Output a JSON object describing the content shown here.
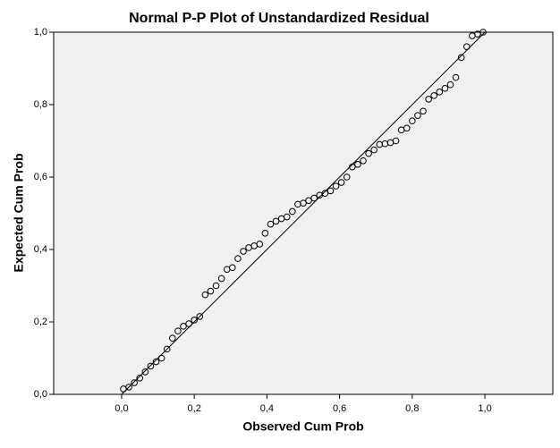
{
  "chart_data": {
    "type": "scatter",
    "title": "Normal P-P Plot of Unstandardized Residual",
    "x_label": "Observed Cum Prob",
    "y_label": "Expected Cum Prob",
    "color": "#000000",
    "x": [
      0.005,
      0.02,
      0.035,
      0.05,
      0.065,
      0.08,
      0.095,
      0.11,
      0.125,
      0.14,
      0.155,
      0.17,
      0.185,
      0.2,
      0.215,
      0.23,
      0.245,
      0.26,
      0.275,
      0.29,
      0.305,
      0.32,
      0.335,
      0.35,
      0.365,
      0.38,
      0.395,
      0.41,
      0.425,
      0.44,
      0.455,
      0.47,
      0.485,
      0.5,
      0.515,
      0.53,
      0.545,
      0.56,
      0.575,
      0.59,
      0.605,
      0.62,
      0.635,
      0.65,
      0.665,
      0.68,
      0.695,
      0.71,
      0.725,
      0.74,
      0.755,
      0.77,
      0.785,
      0.8,
      0.815,
      0.83,
      0.845,
      0.86,
      0.875,
      0.89,
      0.905,
      0.92,
      0.935,
      0.95,
      0.965,
      0.98,
      0.995
    ],
    "values": [
      0.015,
      0.02,
      0.032,
      0.045,
      0.062,
      0.078,
      0.09,
      0.1,
      0.125,
      0.155,
      0.175,
      0.188,
      0.195,
      0.205,
      0.215,
      0.275,
      0.285,
      0.3,
      0.32,
      0.345,
      0.35,
      0.375,
      0.395,
      0.405,
      0.41,
      0.415,
      0.445,
      0.47,
      0.478,
      0.485,
      0.49,
      0.505,
      0.525,
      0.528,
      0.535,
      0.542,
      0.55,
      0.555,
      0.562,
      0.575,
      0.585,
      0.6,
      0.628,
      0.635,
      0.645,
      0.665,
      0.675,
      0.69,
      0.692,
      0.695,
      0.7,
      0.73,
      0.735,
      0.755,
      0.77,
      0.782,
      0.815,
      0.825,
      0.835,
      0.845,
      0.855,
      0.875,
      0.93,
      0.96,
      0.99,
      0.995,
      1.0
    ],
    "reference_line": {
      "x": [
        0,
        1
      ],
      "y": [
        0,
        1
      ]
    },
    "xlim": [
      -0.187,
      1.187
    ],
    "ylim": [
      0,
      1
    ],
    "xticks": [
      {
        "value": 0,
        "label": "0,0"
      },
      {
        "value": 0.2,
        "label": "0,2"
      },
      {
        "value": 0.4,
        "label": "0,4"
      },
      {
        "value": 0.6,
        "label": "0,6"
      },
      {
        "value": 0.8,
        "label": "0,8"
      },
      {
        "value": 1,
        "label": "1,0"
      }
    ],
    "yticks": [
      {
        "value": 0,
        "label": "0,0"
      },
      {
        "value": 0.2,
        "label": "0,2"
      },
      {
        "value": 0.4,
        "label": "0,4"
      },
      {
        "value": 0.6,
        "label": "0,6"
      },
      {
        "value": 0.8,
        "label": "0,8"
      },
      {
        "value": 1,
        "label": "1,0"
      }
    ]
  }
}
